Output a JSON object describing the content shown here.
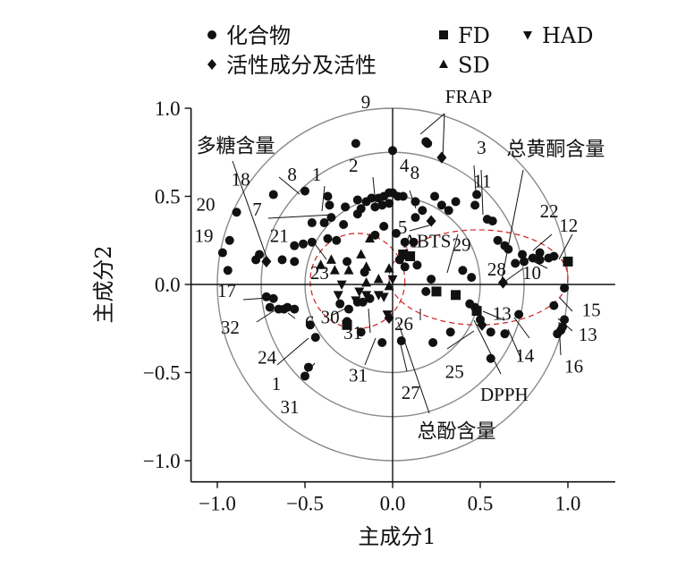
{
  "chart_data": {
    "type": "scatter",
    "xlabel": "主成分1",
    "ylabel": "主成分2",
    "xlim": [
      -1.15,
      1.27
    ],
    "ylim": [
      -1.12,
      1.0
    ],
    "xticks": [
      "-1.0",
      "-0.5",
      "0.0",
      "0.5",
      "1.0"
    ],
    "yticks": [
      "1.0",
      "0.5",
      "0.0",
      "-0.5",
      "-1.0"
    ],
    "circles": [
      1.0,
      0.75,
      0.5
    ],
    "legend": [
      {
        "label": "化合物",
        "marker": "circle"
      },
      {
        "label": "活性成分及活性",
        "marker": "diamond"
      },
      {
        "label": "FD",
        "marker": "square"
      },
      {
        "label": "SD",
        "marker": "triangle"
      },
      {
        "label": "HAD",
        "marker": "triangle-down"
      }
    ],
    "series": [
      {
        "name": "化合物",
        "marker": "circle",
        "points": [
          [
            -0.21,
            0.8
          ],
          [
            0.19,
            0.81
          ],
          [
            0.2,
            0.8
          ],
          [
            0.0,
            0.76
          ],
          [
            -0.68,
            0.51
          ],
          [
            -0.5,
            0.53
          ],
          [
            -0.37,
            0.5
          ],
          [
            -0.36,
            0.45
          ],
          [
            -0.27,
            0.44
          ],
          [
            -0.35,
            0.38
          ],
          [
            -0.2,
            0.48
          ],
          [
            -0.15,
            0.47
          ],
          [
            -0.12,
            0.49
          ],
          [
            -0.08,
            0.49
          ],
          [
            -0.05,
            0.5
          ],
          [
            -0.02,
            0.52
          ],
          [
            0.0,
            0.52
          ],
          [
            0.03,
            0.5
          ],
          [
            0.06,
            0.5
          ],
          [
            -0.18,
            0.43
          ],
          [
            -0.1,
            0.44
          ],
          [
            -0.06,
            0.45
          ],
          [
            -0.02,
            0.46
          ],
          [
            0.13,
            0.47
          ],
          [
            0.17,
            0.42
          ],
          [
            0.24,
            0.5
          ],
          [
            0.28,
            0.45
          ],
          [
            0.32,
            0.42
          ],
          [
            0.36,
            0.47
          ],
          [
            -0.46,
            0.35
          ],
          [
            -0.39,
            0.35
          ],
          [
            -0.28,
            0.34
          ],
          [
            -0.2,
            0.4
          ],
          [
            0.13,
            0.38
          ],
          [
            -0.46,
            0.24
          ],
          [
            -0.51,
            0.23
          ],
          [
            -0.56,
            0.22
          ],
          [
            -0.37,
            0.26
          ],
          [
            -0.32,
            0.25
          ],
          [
            -0.05,
            0.33
          ],
          [
            -0.1,
            0.28
          ],
          [
            0.02,
            0.29
          ],
          [
            0.07,
            0.24
          ],
          [
            0.12,
            0.24
          ],
          [
            0.48,
            0.51
          ],
          [
            0.47,
            0.45
          ],
          [
            0.54,
            0.37
          ],
          [
            0.57,
            0.36
          ],
          [
            0.6,
            0.25
          ],
          [
            0.64,
            0.22
          ],
          [
            0.66,
            0.2
          ],
          [
            0.74,
            0.17
          ],
          [
            0.84,
            0.18
          ],
          [
            0.92,
            0.16
          ],
          [
            0.89,
            0.15
          ],
          [
            0.84,
            0.14
          ],
          [
            0.8,
            0.15
          ],
          [
            0.75,
            0.13
          ],
          [
            0.7,
            0.12
          ],
          [
            -0.89,
            0.41
          ],
          [
            -0.93,
            0.25
          ],
          [
            -0.97,
            0.18
          ],
          [
            -0.94,
            0.08
          ],
          [
            -0.76,
            0.17
          ],
          [
            -0.78,
            0.14
          ],
          [
            -0.56,
            0.13
          ],
          [
            -0.63,
            0.14
          ],
          [
            -0.26,
            0.13
          ],
          [
            -0.16,
            0.07
          ],
          [
            0.04,
            0.14
          ],
          [
            0.07,
            0.1
          ],
          [
            0.14,
            0.11
          ],
          [
            0.22,
            0.03
          ],
          [
            0.19,
            -0.04
          ],
          [
            0.4,
            0.08
          ],
          [
            0.45,
            0.04
          ],
          [
            -0.3,
            -0.11
          ],
          [
            -0.25,
            -0.14
          ],
          [
            -0.2,
            -0.1
          ],
          [
            -0.17,
            -0.1
          ],
          [
            -0.13,
            -0.08
          ],
          [
            -0.72,
            -0.07
          ],
          [
            -0.68,
            -0.08
          ],
          [
            -0.7,
            -0.13
          ],
          [
            -0.65,
            -0.14
          ],
          [
            -0.62,
            -0.14
          ],
          [
            -0.6,
            -0.13
          ],
          [
            -0.56,
            -0.14
          ],
          [
            -0.47,
            -0.23
          ],
          [
            -0.44,
            -0.3
          ],
          [
            -0.26,
            -0.21
          ],
          [
            -0.18,
            -0.27
          ],
          [
            -0.06,
            -0.33
          ],
          [
            0.05,
            -0.32
          ],
          [
            0.23,
            -0.33
          ],
          [
            0.33,
            -0.27
          ],
          [
            0.44,
            -0.11
          ],
          [
            0.47,
            -0.13
          ],
          [
            0.5,
            -0.2
          ],
          [
            0.56,
            -0.27
          ],
          [
            0.64,
            -0.28
          ],
          [
            0.56,
            -0.42
          ],
          [
            0.72,
            -0.17
          ],
          [
            0.92,
            -0.12
          ],
          [
            0.98,
            -0.02
          ],
          [
            0.98,
            -0.2
          ],
          [
            0.96,
            -0.26
          ],
          [
            0.94,
            -0.28
          ],
          [
            0.97,
            -0.24
          ],
          [
            -0.48,
            -0.47
          ],
          [
            -0.5,
            -0.52
          ]
        ]
      },
      {
        "name": "活性成分及活性",
        "marker": "diamond",
        "points": [
          [
            -0.72,
            0.13
          ],
          [
            0.28,
            0.72
          ],
          [
            0.22,
            0.36
          ],
          [
            0.63,
            0.01
          ],
          [
            -0.02,
            -0.19
          ],
          [
            0.51,
            -0.23
          ]
        ]
      },
      {
        "name": "FD",
        "marker": "square",
        "points": [
          [
            0.06,
            0.17
          ],
          [
            0.1,
            0.16
          ],
          [
            0.25,
            -0.04
          ],
          [
            0.36,
            -0.06
          ],
          [
            0.48,
            -0.15
          ],
          [
            1.0,
            0.13
          ],
          [
            -0.26,
            -0.23
          ]
        ]
      },
      {
        "name": "SD",
        "marker": "triangle",
        "points": [
          [
            -0.35,
            0.14
          ],
          [
            -0.41,
            0.11
          ],
          [
            -0.33,
            0.08
          ],
          [
            -0.25,
            0.08
          ],
          [
            -0.18,
            0.17
          ],
          [
            -0.15,
            0.1
          ],
          [
            -0.13,
            0.26
          ],
          [
            -0.02,
            0.09
          ],
          [
            -0.15,
            0.01
          ],
          [
            -0.08,
            0.03
          ],
          [
            -0.02,
            -0.01
          ]
        ]
      },
      {
        "name": "HAD",
        "marker": "triangle-down",
        "points": [
          [
            -0.29,
            0.0
          ],
          [
            -0.31,
            -0.06
          ],
          [
            -0.21,
            -0.09
          ],
          [
            -0.19,
            -0.04
          ],
          [
            -0.15,
            -0.06
          ],
          [
            -0.08,
            -0.06
          ],
          [
            -0.05,
            -0.07
          ],
          [
            -0.03,
            -0.17
          ],
          [
            0.0,
            0.03
          ]
        ]
      }
    ],
    "labels": [
      {
        "text": "9",
        "x": -0.18,
        "y": 1.0
      },
      {
        "text": "FRAP",
        "x": 0.3,
        "y": 1.03
      },
      {
        "text": "3",
        "x": 0.48,
        "y": 0.74
      },
      {
        "text": "总黄酮含量",
        "x": 0.65,
        "y": 0.73
      },
      {
        "text": "多糖含量",
        "x": -1.12,
        "y": 0.75
      },
      {
        "text": "2",
        "x": -0.25,
        "y": 0.64
      },
      {
        "text": "4",
        "x": 0.04,
        "y": 0.64
      },
      {
        "text": "8",
        "x": 0.1,
        "y": 0.6
      },
      {
        "text": "18",
        "x": -0.92,
        "y": 0.56
      },
      {
        "text": "8",
        "x": -0.6,
        "y": 0.59
      },
      {
        "text": "1",
        "x": -0.46,
        "y": 0.59
      },
      {
        "text": "11",
        "x": 0.46,
        "y": 0.55
      },
      {
        "text": "20",
        "x": -1.12,
        "y": 0.42
      },
      {
        "text": "7",
        "x": -0.8,
        "y": 0.39
      },
      {
        "text": "22",
        "x": 0.84,
        "y": 0.38
      },
      {
        "text": "12",
        "x": 0.95,
        "y": 0.3
      },
      {
        "text": "19",
        "x": -1.13,
        "y": 0.24
      },
      {
        "text": "21",
        "x": -0.7,
        "y": 0.24
      },
      {
        "text": "5",
        "x": 0.03,
        "y": 0.29
      },
      {
        "text": "ABTS",
        "x": 0.06,
        "y": 0.21
      },
      {
        "text": "29",
        "x": 0.34,
        "y": 0.19
      },
      {
        "text": "28",
        "x": 0.54,
        "y": 0.05
      },
      {
        "text": "10",
        "x": 0.74,
        "y": 0.03
      },
      {
        "text": "23",
        "x": -0.47,
        "y": 0.03
      },
      {
        "text": "17",
        "x": -1.0,
        "y": -0.07
      },
      {
        "text": "32",
        "x": -0.98,
        "y": -0.28
      },
      {
        "text": "6",
        "x": -0.5,
        "y": -0.25
      },
      {
        "text": "30",
        "x": -0.41,
        "y": -0.22
      },
      {
        "text": "31",
        "x": -0.28,
        "y": -0.31
      },
      {
        "text": "26",
        "x": 0.01,
        "y": -0.26
      },
      {
        "text": "13",
        "x": 0.57,
        "y": -0.2
      },
      {
        "text": "15",
        "x": 1.08,
        "y": -0.18
      },
      {
        "text": "13",
        "x": 1.06,
        "y": -0.32
      },
      {
        "text": "24",
        "x": -0.77,
        "y": -0.45
      },
      {
        "text": "14",
        "x": 0.7,
        "y": -0.44
      },
      {
        "text": "16",
        "x": 0.98,
        "y": -0.5
      },
      {
        "text": "25",
        "x": 0.3,
        "y": -0.53
      },
      {
        "text": "1",
        "x": -0.69,
        "y": -0.6
      },
      {
        "text": "31",
        "x": -0.25,
        "y": -0.55
      },
      {
        "text": "27",
        "x": 0.05,
        "y": -0.65
      },
      {
        "text": "DPPH",
        "x": 0.5,
        "y": -0.66
      },
      {
        "text": "31",
        "x": -0.64,
        "y": -0.73
      },
      {
        "text": "总酚含量",
        "x": 0.14,
        "y": -0.87
      }
    ]
  }
}
